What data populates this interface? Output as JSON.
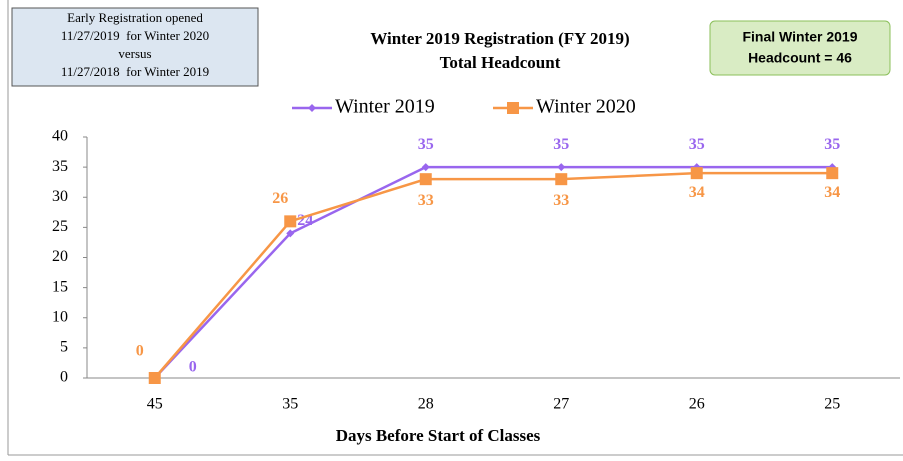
{
  "chart_data": {
    "type": "line",
    "title": [
      "Winter 2019 Registration (FY 2019)",
      "Total Headcount"
    ],
    "note_left": [
      "Early Registration opened",
      "11/27/2019  for Winter 2020",
      "versus",
      "11/27/2018  for Winter 2019"
    ],
    "note_right": [
      "Final Winter 2019",
      "Headcount = 46"
    ],
    "x_label": "Days Before Start of Classes",
    "categories": [
      "45",
      "35",
      "28",
      "27",
      "26",
      "25"
    ],
    "series": [
      {
        "name": "Winter 2019",
        "color": "#9966ee",
        "values": [
          0,
          24,
          35,
          35,
          35,
          35
        ]
      },
      {
        "name": "Winter 2020",
        "color": "#f79646",
        "values": [
          0,
          26,
          33,
          33,
          34,
          34
        ]
      }
    ],
    "ylim": [
      0,
      40
    ],
    "yticks": [
      0,
      5,
      10,
      15,
      20,
      25,
      30,
      35,
      40
    ]
  }
}
